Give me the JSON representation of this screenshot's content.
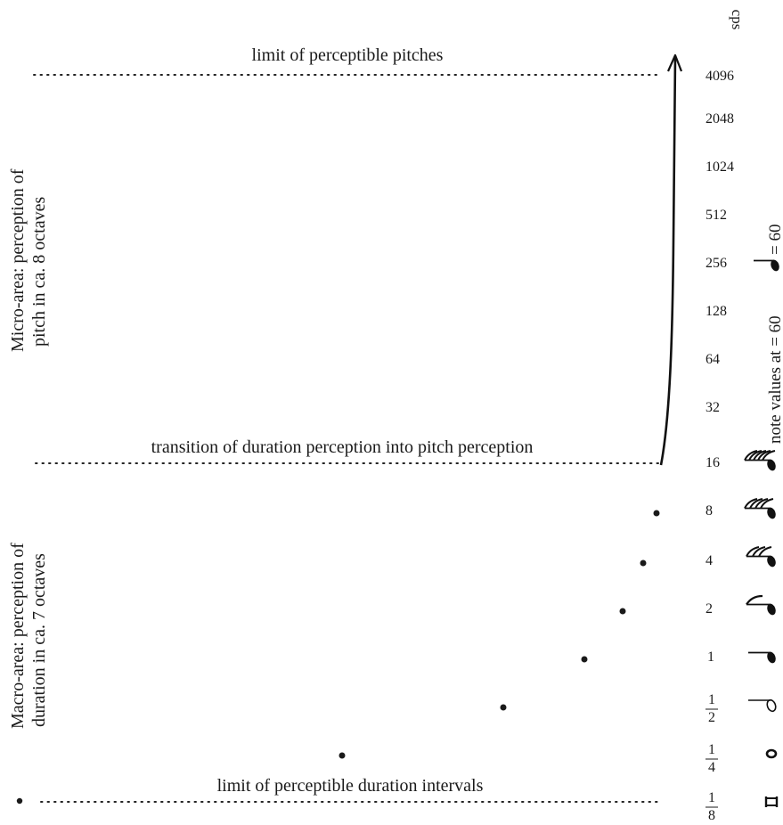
{
  "unit_label": "cps",
  "limit_pitches": "limit of perceptible pitches",
  "transition": "transition of duration perception into pitch perception",
  "limit_durations": "limit of perceptible duration intervals",
  "micro_area": [
    "Micro-area: perception of",
    "pitch in ca. 8 octaves"
  ],
  "macro_area": [
    "Macro-area: perception of",
    "duration in ca. 7 octaves"
  ],
  "note_values": "note values at = 60",
  "tempo_mark": "= 60",
  "frequencies": [
    "4096",
    "2048",
    "1024",
    "512",
    "256",
    "128",
    "64",
    "32",
    "16",
    "8",
    "4",
    "2",
    "1"
  ],
  "fractions": [
    {
      "num": "1",
      "den": "2"
    },
    {
      "num": "1",
      "den": "4"
    },
    {
      "num": "1",
      "den": "8"
    }
  ]
}
